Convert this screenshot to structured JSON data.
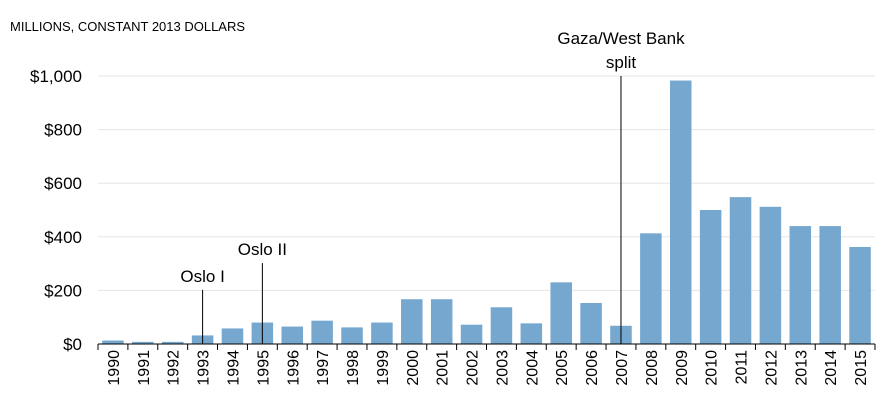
{
  "chart_data": {
    "type": "bar",
    "title": "",
    "units_label": "MILLIONS, CONSTANT 2013  DOLLARS",
    "xlabel": "",
    "ylabel": "",
    "categories": [
      "1990",
      "1991",
      "1992",
      "1993",
      "1994",
      "1995",
      "1996",
      "1997",
      "1998",
      "1999",
      "2000",
      "2001",
      "2002",
      "2003",
      "2004",
      "2005",
      "2006",
      "2007",
      "2008",
      "2009",
      "2010",
      "2011",
      "2012",
      "2013",
      "2014",
      "2015"
    ],
    "values": [
      13,
      8,
      8,
      32,
      58,
      80,
      65,
      87,
      62,
      80,
      167,
      167,
      72,
      137,
      77,
      230,
      153,
      68,
      413,
      983,
      500,
      548,
      512,
      440,
      440,
      362
    ],
    "ylim": [
      0,
      1000
    ],
    "yticks": [
      0,
      200,
      400,
      600,
      800,
      1000
    ],
    "ytick_labels": [
      "$0",
      "$200",
      "$400",
      "$600",
      "$800",
      "$1,000"
    ],
    "grid": true,
    "bar_color": "#75A7CF",
    "annotations": [
      {
        "category": "1993",
        "lines": [
          "Oslo I"
        ],
        "top_value": 202
      },
      {
        "category": "1995",
        "lines": [
          "Oslo II"
        ],
        "top_value": 302
      },
      {
        "category": "2007",
        "lines": [
          "Gaza/West Bank",
          "split"
        ],
        "top_value": 1000
      }
    ]
  }
}
